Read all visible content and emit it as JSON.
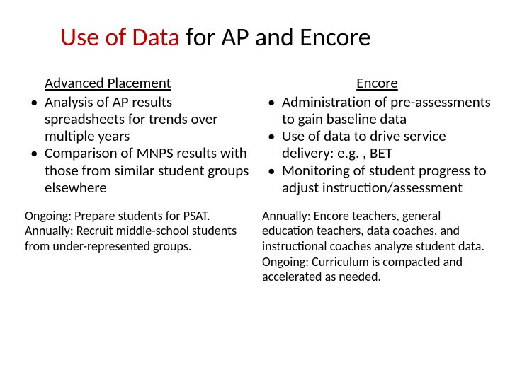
{
  "title": {
    "accent": "Use of Data",
    "rest": " for AP and Encore"
  },
  "left": {
    "heading": "Advanced Placement",
    "bullets": [
      "Analysis of AP results spreadsheets for trends over multiple years",
      "Comparison of MNPS results with those from similar student groups elsewhere"
    ],
    "footer": [
      {
        "label": "Ongoing:",
        "text": " Prepare students for PSAT."
      },
      {
        "label": "Annually:",
        "text": " Recruit middle-school students from under-represented groups."
      }
    ]
  },
  "right": {
    "heading": "Encore",
    "bullets": [
      "Administration of pre-assessments to gain baseline data",
      "Use of data to drive service delivery: e.g. , BET",
      "Monitoring of student progress to adjust instruction/assessment"
    ],
    "footer": [
      {
        "label": "Annually:",
        "text": " Encore teachers, general education teachers, data coaches, and instructional coaches analyze student data."
      },
      {
        "label": "Ongoing:",
        "text": " Curriculum is compacted and accelerated as needed."
      }
    ]
  },
  "colors": {
    "accent": "#c00000",
    "text": "#000000",
    "background": "#ffffff"
  }
}
